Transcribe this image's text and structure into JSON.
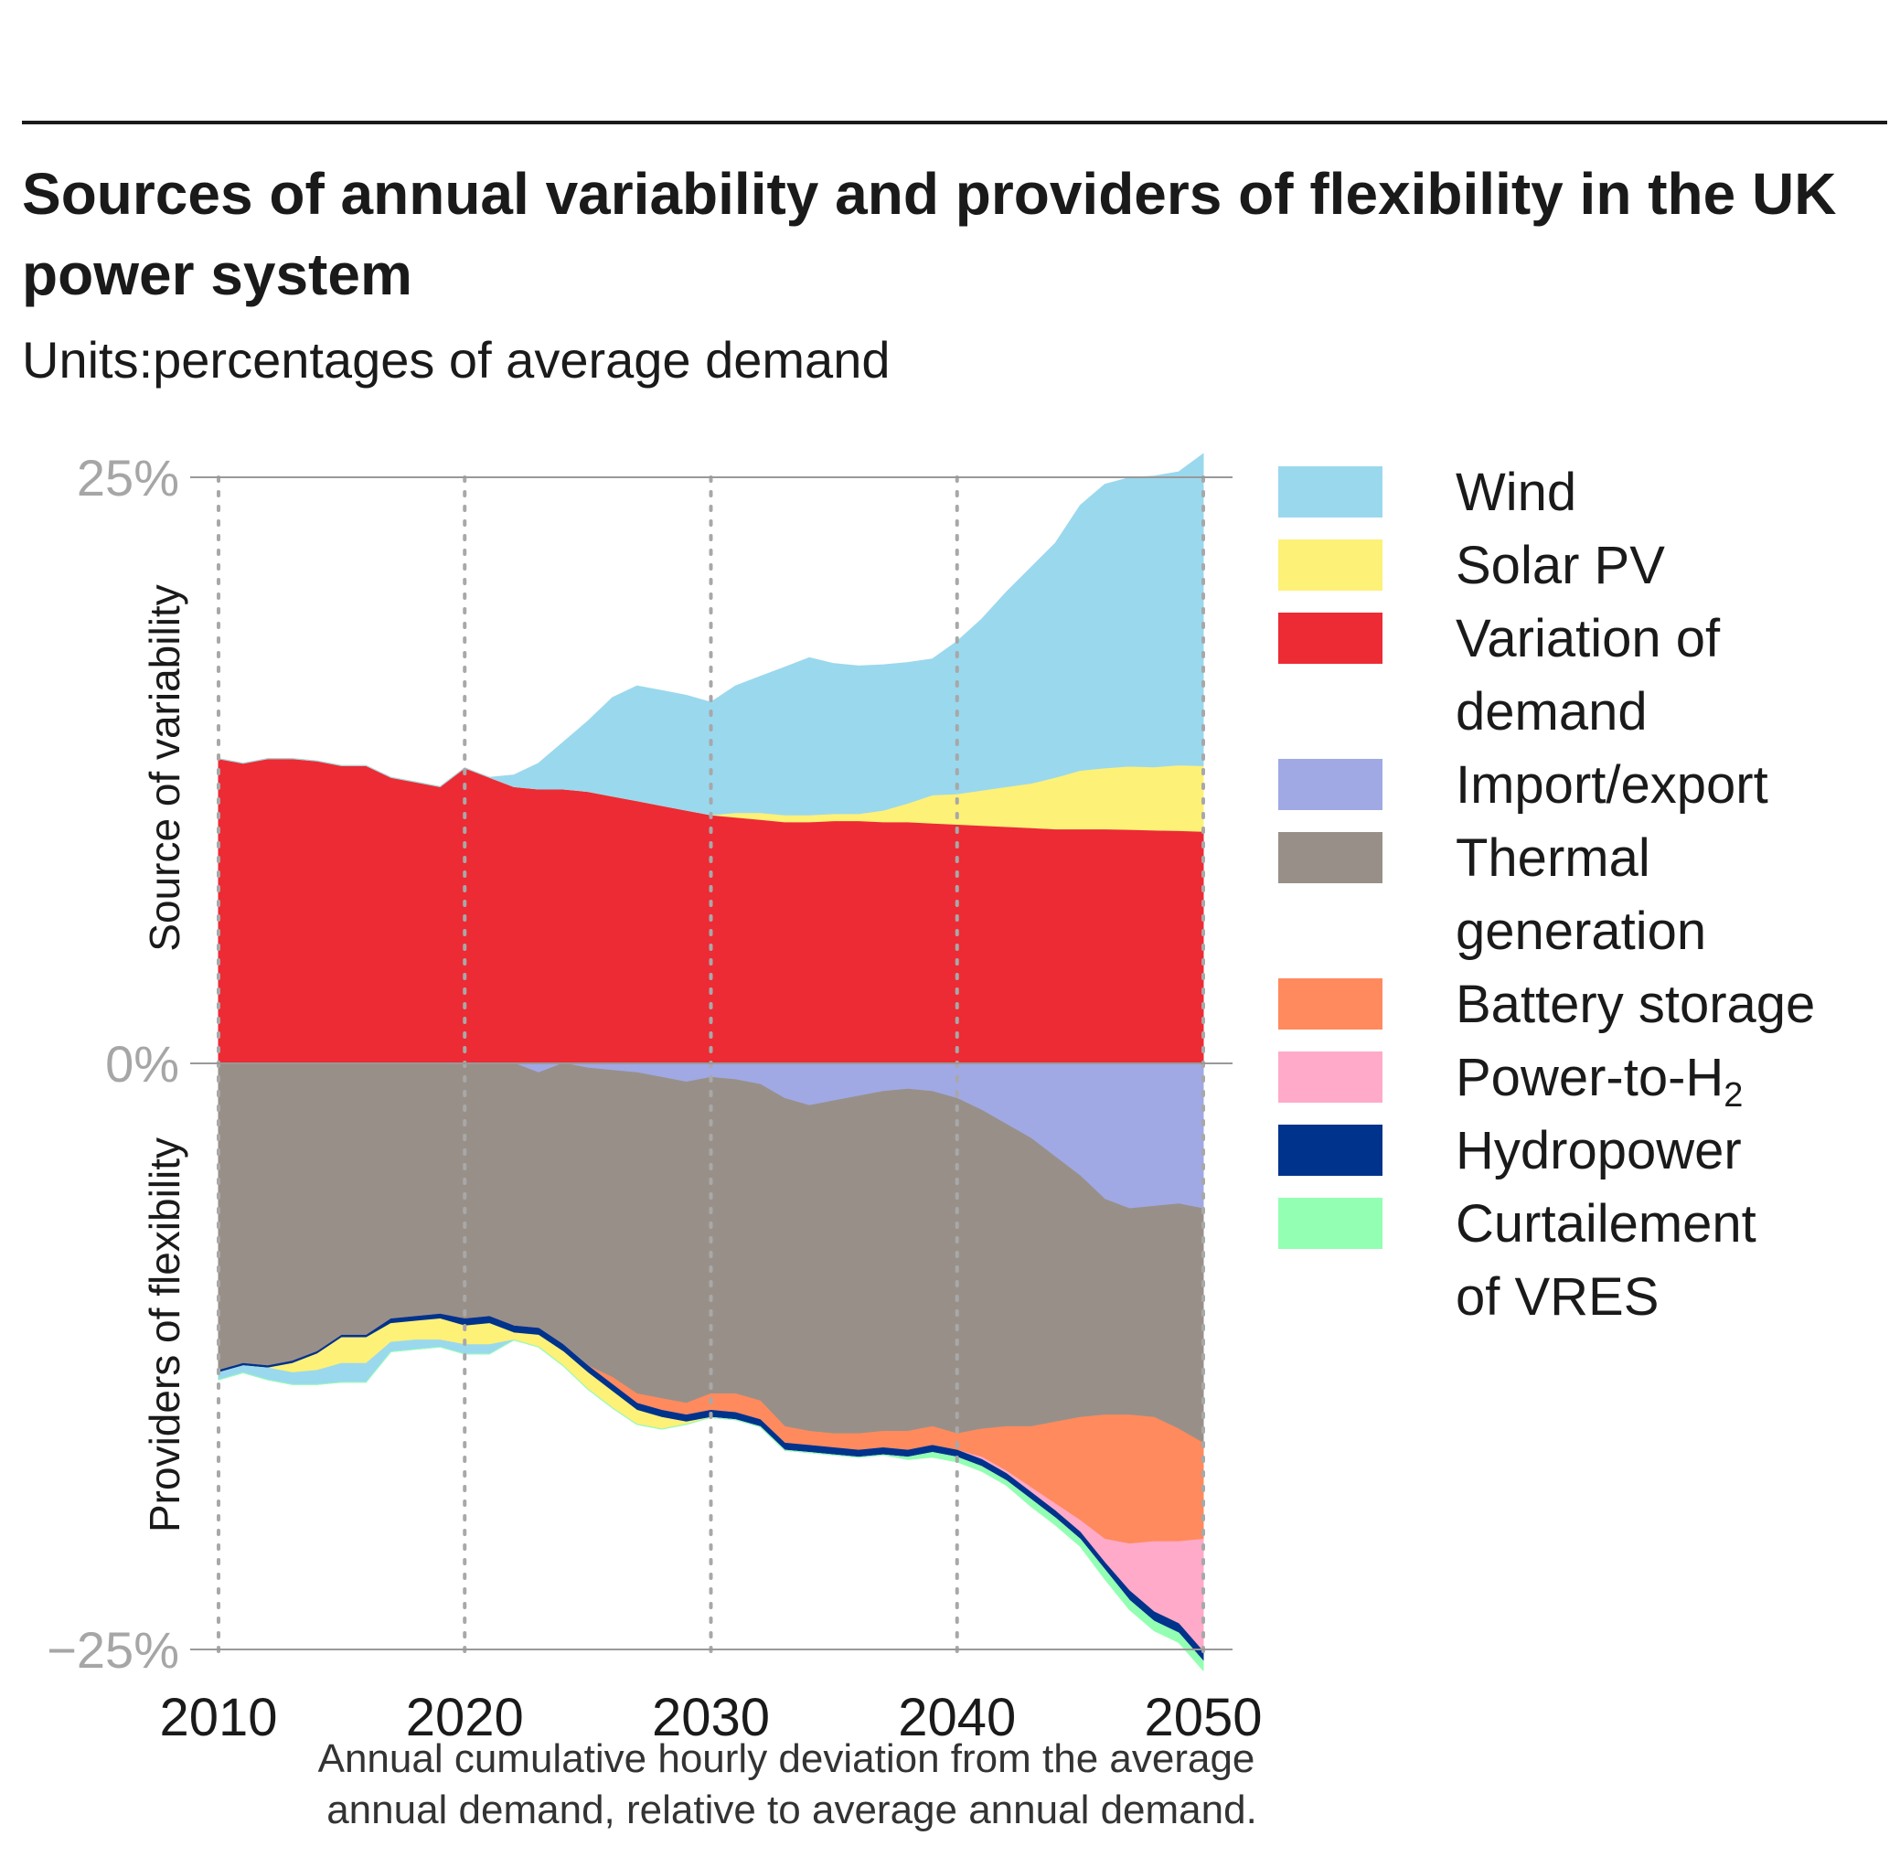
{
  "chart_data": {
    "type": "area",
    "title": "Sources of annual variability and providers of flexibility in the UK power system",
    "subtitle": "Units:percentages of average demand",
    "xlabel_lines": [
      "Annual cumulative hourly deviation from the average",
      "annual demand, relative to average annual demand."
    ],
    "ylabel_top": "Source of variability",
    "ylabel_bottom": "Providers of flexibility",
    "xlim": [
      2010,
      2050
    ],
    "ylim": [
      -25,
      25
    ],
    "x_ticks": [
      {
        "v": 2010,
        "label": "2010"
      },
      {
        "v": 2020,
        "label": "2020"
      },
      {
        "v": 2030,
        "label": "2030"
      },
      {
        "v": 2040,
        "label": "2040"
      },
      {
        "v": 2050,
        "label": "2050"
      }
    ],
    "y_ticks": [
      {
        "v": 25,
        "label": "25%"
      },
      {
        "v": 0,
        "label": "0%"
      },
      {
        "v": -25,
        "label": "−25%"
      }
    ],
    "x": [
      2010,
      2011,
      2012,
      2013,
      2014,
      2015,
      2016,
      2017,
      2018,
      2019,
      2020,
      2021,
      2022,
      2023,
      2024,
      2025,
      2026,
      2027,
      2028,
      2029,
      2030,
      2031,
      2032,
      2033,
      2034,
      2035,
      2036,
      2037,
      2038,
      2039,
      2040,
      2041,
      2042,
      2043,
      2044,
      2045,
      2046,
      2047,
      2048,
      2049,
      2050
    ],
    "positive_series": [
      {
        "name": "Variation of demand",
        "color": "#ec2b35",
        "values": [
          13.0,
          12.8,
          13.0,
          13.0,
          12.9,
          12.7,
          12.7,
          12.2,
          12.0,
          11.8,
          12.6,
          12.2,
          11.8,
          11.7,
          11.7,
          11.6,
          11.4,
          11.2,
          11.0,
          10.8,
          10.6,
          10.5,
          10.4,
          10.3,
          10.3,
          10.35,
          10.35,
          10.3,
          10.3,
          10.25,
          10.2,
          10.15,
          10.1,
          10.05,
          10.0,
          10.0,
          10.0,
          9.98,
          9.95,
          9.93,
          9.9
        ]
      },
      {
        "name": "Solar PV",
        "color": "#fdf178",
        "values": [
          0,
          0,
          0,
          0,
          0,
          0,
          0,
          0,
          0,
          0,
          0,
          0,
          0,
          0,
          0,
          0,
          0,
          0,
          0,
          0,
          0,
          0.2,
          0.3,
          0.3,
          0.3,
          0.3,
          0.3,
          0.5,
          0.8,
          1.2,
          1.3,
          1.5,
          1.7,
          1.9,
          2.2,
          2.5,
          2.6,
          2.7,
          2.7,
          2.8,
          2.8
        ]
      },
      {
        "name": "Wind",
        "color": "#9ad8ee",
        "values": [
          0,
          0,
          0,
          0,
          0,
          0,
          0,
          0,
          0,
          0,
          0,
          0,
          0.5,
          1.1,
          2.0,
          3.0,
          4.2,
          4.9,
          4.9,
          4.9,
          4.8,
          5.4,
          5.8,
          6.3,
          6.7,
          6.4,
          6.3,
          6.2,
          6.0,
          5.8,
          6.5,
          7.3,
          8.3,
          9.2,
          10.0,
          11.3,
          12.1,
          12.3,
          12.4,
          12.5,
          13.3
        ]
      }
    ],
    "negative_series": [
      {
        "name": "Import/export",
        "color": "#a0a9e4",
        "values": [
          0,
          0,
          0,
          0,
          0,
          0,
          0,
          0,
          0,
          0,
          0,
          0,
          0,
          0.4,
          0,
          0.2,
          0.3,
          0.4,
          0.6,
          0.8,
          0.6,
          0.7,
          0.9,
          1.5,
          1.8,
          1.6,
          1.4,
          1.2,
          1.1,
          1.2,
          1.5,
          2.0,
          2.6,
          3.2,
          4.0,
          4.8,
          5.8,
          6.2,
          6.1,
          6.0,
          6.2
        ]
      },
      {
        "name": "Thermal generation",
        "color": "#989088",
        "values": [
          13.1,
          12.8,
          12.9,
          12.7,
          12.3,
          11.6,
          11.6,
          10.9,
          10.8,
          10.7,
          10.9,
          10.8,
          11.2,
          10.9,
          12.0,
          12.7,
          13.1,
          13.7,
          13.7,
          13.7,
          13.5,
          13.4,
          13.5,
          14.0,
          13.9,
          14.2,
          14.4,
          14.5,
          14.6,
          14.3,
          14.3,
          13.6,
          12.9,
          12.3,
          11.3,
          10.3,
          9.2,
          8.8,
          9.0,
          9.6,
          10.0
        ]
      },
      {
        "name": "Battery storage",
        "color": "#ff8a5e",
        "values": [
          0,
          0,
          0,
          0,
          0,
          0,
          0,
          0,
          0,
          0,
          0,
          0,
          0,
          0,
          0,
          0,
          0.3,
          0.4,
          0.5,
          0.5,
          0.7,
          0.8,
          0.8,
          0.7,
          0.6,
          0.6,
          0.7,
          0.7,
          0.8,
          0.8,
          0.7,
          1.2,
          1.9,
          2.6,
          3.5,
          4.4,
          5.3,
          5.5,
          5.3,
          4.8,
          4.1
        ]
      },
      {
        "name": "Power-to-H2",
        "color": "#ffaac8",
        "values": [
          0,
          0,
          0,
          0,
          0,
          0,
          0,
          0,
          0,
          0,
          0,
          0,
          0,
          0,
          0,
          0,
          0,
          0,
          0,
          0,
          0,
          0,
          0,
          0,
          0,
          0,
          0,
          0,
          0,
          0,
          0,
          0.1,
          0.1,
          0.2,
          0.3,
          0.5,
          1.0,
          2.0,
          3.0,
          3.5,
          4.8
        ]
      },
      {
        "name": "Hydropower",
        "color": "#00338c",
        "values": [
          0.1,
          0.1,
          0.1,
          0.1,
          0.1,
          0.1,
          0.1,
          0.2,
          0.2,
          0.2,
          0.3,
          0.3,
          0.3,
          0.3,
          0.3,
          0.3,
          0.3,
          0.3,
          0.3,
          0.3,
          0.3,
          0.3,
          0.3,
          0.3,
          0.3,
          0.3,
          0.3,
          0.3,
          0.3,
          0.3,
          0.3,
          0.3,
          0.3,
          0.3,
          0.3,
          0.3,
          0.3,
          0.4,
          0.4,
          0.4,
          0.4
        ]
      },
      {
        "name": "Solar PV",
        "color": "#fdf178",
        "values": [
          0,
          0,
          0,
          0.4,
          0.7,
          1.1,
          1.1,
          0.8,
          0.8,
          0.9,
          0.8,
          0.9,
          0.3,
          0.5,
          0.6,
          0.7,
          0.7,
          0.6,
          0.5,
          0.1,
          0,
          0,
          0,
          0,
          0,
          0,
          0,
          0,
          0,
          0,
          0,
          0,
          0,
          0,
          0,
          0,
          0,
          0,
          0,
          0,
          0
        ]
      },
      {
        "name": "Wind",
        "color": "#9ad8ee",
        "values": [
          0.3,
          0.3,
          0.5,
          0.5,
          0.6,
          0.8,
          0.8,
          0.4,
          0.4,
          0.3,
          0.4,
          0.4,
          0,
          0,
          0,
          0,
          0,
          0,
          0,
          0,
          0,
          0,
          0,
          0,
          0,
          0,
          0,
          0,
          0,
          0,
          0,
          0,
          0,
          0,
          0,
          0,
          0,
          0,
          0,
          0,
          0
        ]
      },
      {
        "name": "Curtailement of VRES",
        "color": "#93ffb2",
        "values": [
          0,
          0,
          0,
          0,
          0,
          0,
          0,
          0,
          0,
          0,
          0,
          0,
          0,
          0,
          0,
          0,
          0,
          0,
          0,
          0,
          0,
          0,
          0,
          0,
          0,
          0,
          0,
          0,
          0.1,
          0.2,
          0.2,
          0.2,
          0.2,
          0.3,
          0.3,
          0.3,
          0.4,
          0.4,
          0.4,
          0.4,
          0.4
        ]
      }
    ],
    "legend": [
      {
        "key": "wind",
        "lines": [
          "Wind"
        ],
        "color": "#9ad8ee"
      },
      {
        "key": "solar",
        "lines": [
          "Solar PV"
        ],
        "color": "#fdf178"
      },
      {
        "key": "demand",
        "lines": [
          "Variation of",
          "demand"
        ],
        "color": "#ec2b35"
      },
      {
        "key": "import",
        "lines": [
          "Import/export"
        ],
        "color": "#a0a9e4"
      },
      {
        "key": "thermal",
        "lines": [
          "Thermal",
          "generation"
        ],
        "color": "#989088"
      },
      {
        "key": "battery",
        "lines": [
          "Battery storage"
        ],
        "color": "#ff8a5e"
      },
      {
        "key": "h2",
        "lines": [
          "Power-to-H"
        ],
        "sub": "2",
        "color": "#ffaac8"
      },
      {
        "key": "hydro",
        "lines": [
          "Hydropower"
        ],
        "color": "#00338c"
      },
      {
        "key": "curtail",
        "lines": [
          "Curtailement",
          "of VRES"
        ],
        "color": "#93ffb2"
      }
    ],
    "legend_placement": "right",
    "grid": "vertical dotted at x ticks"
  }
}
